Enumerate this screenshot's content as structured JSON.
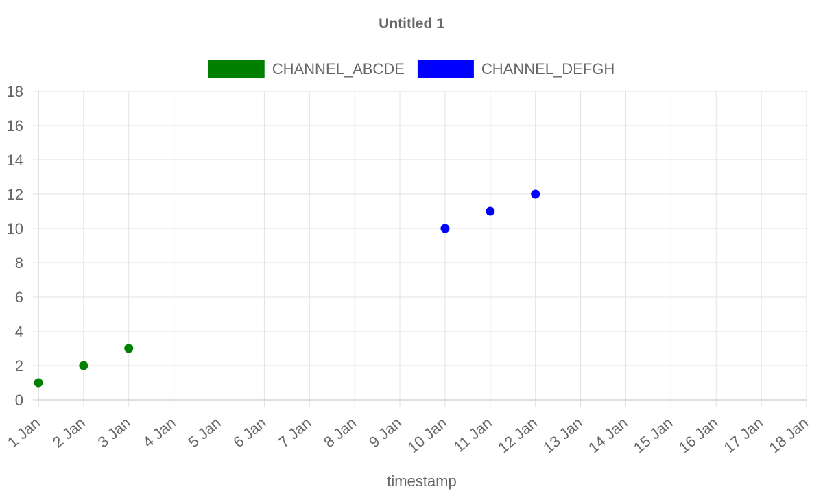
{
  "chart_data": {
    "type": "scatter",
    "title": "Untitled 1",
    "xlabel": "timestamp",
    "ylabel": "",
    "x_ticks": [
      "1 Jan",
      "2 Jan",
      "3 Jan",
      "4 Jan",
      "5 Jan",
      "6 Jan",
      "7 Jan",
      "8 Jan",
      "9 Jan",
      "10 Jan",
      "11 Jan",
      "12 Jan",
      "13 Jan",
      "14 Jan",
      "15 Jan",
      "16 Jan",
      "17 Jan",
      "18 Jan"
    ],
    "xlim": [
      1,
      18
    ],
    "ylim": [
      0,
      18
    ],
    "y_ticks": [
      "0",
      "2",
      "4",
      "6",
      "8",
      "10",
      "12",
      "14",
      "16",
      "18"
    ],
    "grid": true,
    "legend_position": "top-center",
    "series": [
      {
        "name": "CHANNEL_ABCDE",
        "color": "#008000",
        "points": [
          {
            "x": 1,
            "y": 1
          },
          {
            "x": 2,
            "y": 2
          },
          {
            "x": 3,
            "y": 3
          }
        ]
      },
      {
        "name": "CHANNEL_DEFGH",
        "color": "#0000ff",
        "points": [
          {
            "x": 10,
            "y": 10
          },
          {
            "x": 11,
            "y": 11
          },
          {
            "x": 12,
            "y": 12
          }
        ]
      }
    ]
  }
}
